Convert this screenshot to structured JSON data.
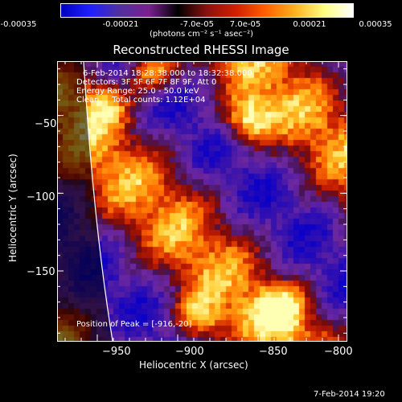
{
  "colorbar": {
    "ticks": [
      "-0.00035",
      "-0.00021",
      "-7.0e-05",
      "7.0e-05",
      "0.00021",
      "0.00035"
    ],
    "tick_values": [
      -0.00035,
      -0.00021,
      -7e-05,
      7e-05,
      0.00021,
      0.00035
    ],
    "unit_label": "(photons cm⁻² s⁻¹ asec⁻²)",
    "colors": [
      "#0000c0",
      "#2020ff",
      "#5030a0",
      "#7a2090",
      "#000000",
      "#8b1010",
      "#d02000",
      "#ff6000",
      "#ffb020",
      "#ffff80",
      "#ffffff"
    ]
  },
  "chart_data": {
    "type": "heatmap",
    "title": "Reconstructed RHESSI Image",
    "xlabel": "Heliocentric X (arcsec)",
    "ylabel": "Heliocentric Y (arcsec)",
    "xlim": [
      -975,
      -795
    ],
    "ylim": [
      -195,
      -15
    ],
    "x_ticks": [
      -950,
      -900,
      -850,
      -800
    ],
    "y_ticks": [
      -150,
      -100,
      -50
    ],
    "x_tick_labels": [
      "−950",
      "−900",
      "−850",
      "−800"
    ],
    "y_tick_labels": [
      "−150",
      "−100",
      "−50"
    ],
    "info_lines": [
      "6-Feb-2014 18:28:38.000 to 18:32:38.000",
      "Detectors: 3F 5F 6F 7F 8F 9F, Att 0",
      "Energy Range: 25.0 - 50.0 keV",
      "Clean     Total counts: 1.12E+04"
    ],
    "peak_label": "Position of Peak = [-916,-20]",
    "peak": [
      -916,
      -20
    ],
    "limb": "solar limb curve near left edge"
  },
  "timestamp": "7-Feb-2014 19:20"
}
